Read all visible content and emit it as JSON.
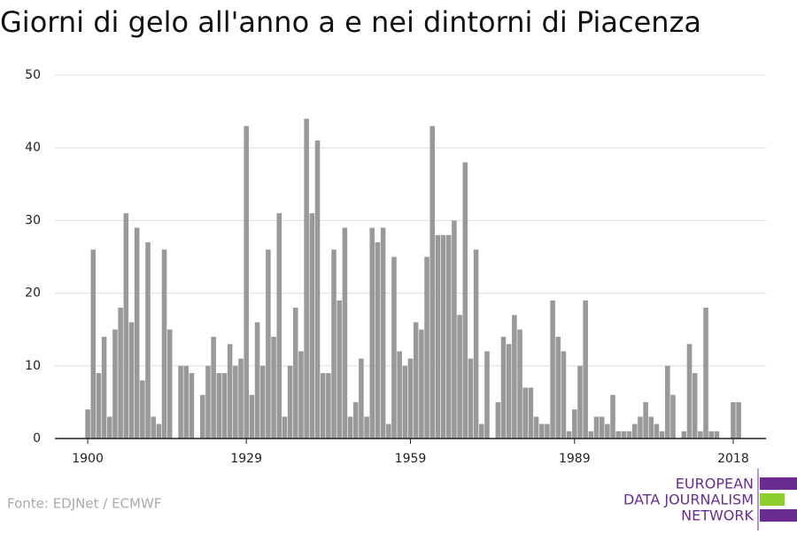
{
  "chart_data": {
    "type": "bar",
    "title": "Giorni di gelo all'anno a e nei dintorni di Piacenza",
    "x": [
      1900,
      1901,
      1902,
      1903,
      1904,
      1905,
      1906,
      1907,
      1908,
      1909,
      1910,
      1911,
      1912,
      1913,
      1914,
      1915,
      1916,
      1917,
      1918,
      1919,
      1920,
      1921,
      1922,
      1923,
      1924,
      1925,
      1926,
      1927,
      1928,
      1929,
      1930,
      1931,
      1932,
      1933,
      1934,
      1935,
      1936,
      1937,
      1938,
      1939,
      1940,
      1941,
      1942,
      1943,
      1944,
      1945,
      1946,
      1947,
      1948,
      1949,
      1950,
      1951,
      1952,
      1953,
      1954,
      1955,
      1956,
      1957,
      1958,
      1959,
      1960,
      1961,
      1962,
      1963,
      1964,
      1965,
      1966,
      1967,
      1968,
      1969,
      1970,
      1971,
      1972,
      1973,
      1974,
      1975,
      1976,
      1977,
      1978,
      1979,
      1980,
      1981,
      1982,
      1983,
      1984,
      1985,
      1986,
      1987,
      1988,
      1989,
      1990,
      1991,
      1992,
      1993,
      1994,
      1995,
      1996,
      1997,
      1998,
      1999,
      2000,
      2001,
      2002,
      2003,
      2004,
      2005,
      2006,
      2007,
      2008,
      2009,
      2010,
      2011,
      2012,
      2013,
      2014,
      2015,
      2016,
      2017,
      2018,
      2019
    ],
    "values": [
      4,
      26,
      9,
      14,
      3,
      15,
      18,
      31,
      16,
      29,
      8,
      27,
      3,
      2,
      26,
      15,
      0,
      10,
      10,
      9,
      0,
      6,
      10,
      14,
      9,
      9,
      13,
      10,
      11,
      43,
      6,
      16,
      10,
      26,
      14,
      31,
      3,
      10,
      18,
      12,
      44,
      31,
      41,
      9,
      9,
      26,
      19,
      29,
      3,
      5,
      11,
      3,
      29,
      27,
      29,
      2,
      25,
      12,
      10,
      11,
      16,
      15,
      25,
      43,
      28,
      28,
      28,
      30,
      17,
      38,
      11,
      26,
      2,
      12,
      0,
      5,
      14,
      13,
      17,
      15,
      7,
      7,
      3,
      2,
      2,
      19,
      14,
      12,
      1,
      4,
      10,
      19,
      1,
      3,
      3,
      2,
      6,
      1,
      1,
      1,
      2,
      3,
      5,
      3,
      2,
      1,
      10,
      6,
      0,
      1,
      13,
      9,
      1,
      18,
      1,
      1,
      0,
      0,
      5,
      5
    ],
    "color": "#999999",
    "xlim": [
      1894,
      2024
    ],
    "xticks": [
      1900,
      1929,
      1959,
      1989,
      2018
    ],
    "ylim": [
      0,
      50
    ],
    "yticks": [
      0,
      10,
      20,
      30,
      40,
      50
    ],
    "grid": true,
    "source": "Fonte: EDJNet / ECMWF"
  },
  "logo": {
    "lines": [
      "EUROPEAN",
      "DATA JOURNALISM",
      "NETWORK"
    ]
  }
}
